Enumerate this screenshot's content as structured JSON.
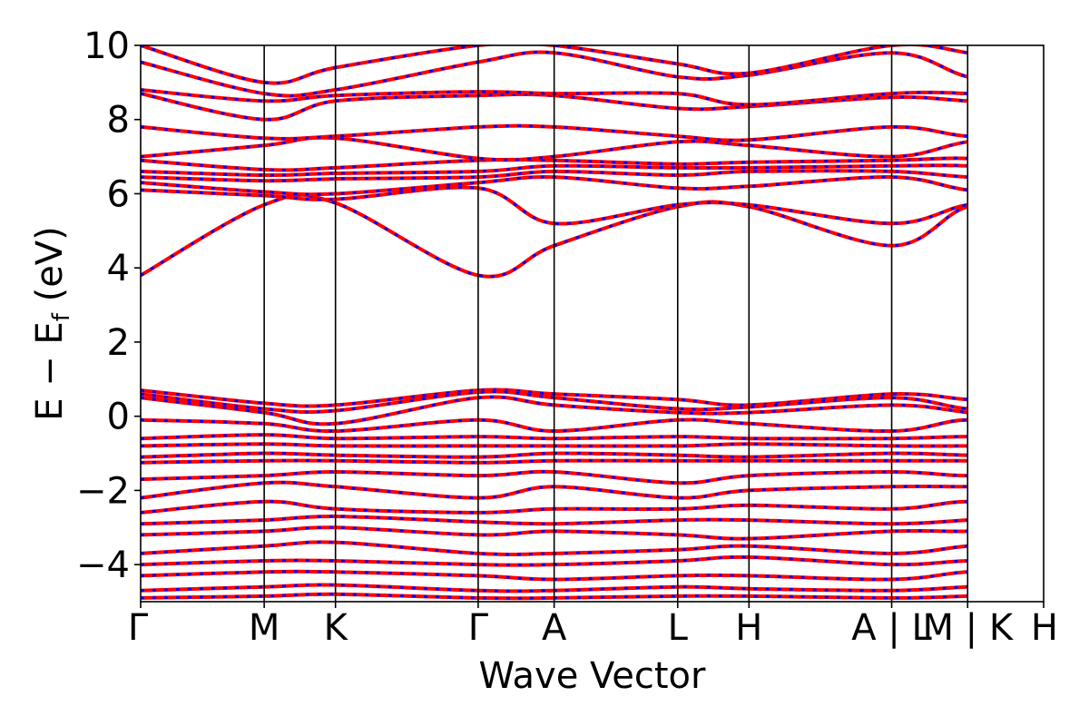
{
  "chart_data": {
    "type": "line",
    "title": "",
    "xlabel": "Wave Vector",
    "ylabel_parts": {
      "main": "E − E",
      "sub": "f",
      "unit": " (eV)"
    },
    "ylim": [
      -5,
      10
    ],
    "y_ticks": [
      10,
      8,
      6,
      4,
      2,
      0,
      -2,
      -4
    ],
    "y_tick_labels": [
      "10",
      "8",
      "6",
      "4",
      "2",
      "0",
      "−2",
      "−4"
    ],
    "x_ticks": [
      {
        "label": "Γ",
        "x": 0.0
      },
      {
        "label": "M",
        "x": 1.0
      },
      {
        "label": "K",
        "x": 1.577
      },
      {
        "label": "Γ",
        "x": 2.732
      },
      {
        "label": "A",
        "x": 3.347
      },
      {
        "label": "L",
        "x": 4.347
      },
      {
        "label": "H",
        "x": 4.924
      },
      {
        "label": "A | L",
        "x": 6.079
      },
      {
        "label": "M | K",
        "x": 6.694
      },
      {
        "label": "H",
        "x": 7.309
      }
    ],
    "xlim": [
      0,
      7.309
    ],
    "grid": false,
    "legend": "none",
    "series_style": [
      {
        "name": "",
        "color": "#ff0000",
        "dash": "solid"
      },
      {
        "name": "",
        "color": "#0000ff",
        "dash": "dashed"
      }
    ],
    "conduction_bands": [
      [
        3.8,
        5.7,
        5.75,
        3.8,
        4.6,
        5.65,
        5.65,
        4.6,
        5.65,
        5.65,
        5.7
      ],
      [
        6.1,
        5.95,
        5.85,
        6.15,
        5.2,
        5.7,
        5.7,
        5.2,
        5.7,
        5.85,
        5.9
      ],
      [
        6.3,
        6.05,
        6.0,
        6.3,
        6.45,
        6.15,
        6.2,
        6.45,
        6.1,
        6.0,
        6.25
      ],
      [
        6.45,
        6.35,
        6.4,
        6.45,
        6.6,
        6.5,
        6.6,
        6.6,
        6.45,
        6.4,
        6.5
      ],
      [
        6.6,
        6.5,
        6.55,
        6.6,
        6.75,
        6.7,
        6.7,
        6.75,
        6.75,
        6.55,
        6.65
      ],
      [
        6.9,
        6.65,
        6.7,
        6.9,
        6.9,
        6.8,
        6.85,
        6.9,
        6.95,
        6.7,
        6.8
      ],
      [
        7.0,
        7.3,
        7.5,
        6.95,
        7.0,
        7.4,
        7.3,
        7.0,
        7.4,
        7.5,
        7.4
      ],
      [
        7.8,
        7.5,
        7.55,
        7.8,
        7.8,
        7.55,
        7.45,
        7.8,
        7.55,
        7.55,
        7.5
      ],
      [
        8.7,
        8.0,
        8.5,
        8.65,
        8.65,
        8.3,
        8.35,
        8.6,
        8.5,
        8.4,
        8.45
      ],
      [
        8.8,
        8.5,
        8.65,
        8.75,
        8.7,
        8.7,
        8.4,
        8.7,
        8.7,
        8.5,
        8.5
      ],
      [
        9.55,
        8.7,
        8.8,
        9.55,
        9.8,
        9.15,
        9.2,
        9.8,
        9.15,
        8.8,
        9.2
      ],
      [
        10.0,
        9.0,
        9.4,
        10.0,
        10.0,
        9.5,
        9.25,
        10.0,
        9.8,
        9.4,
        9.5
      ]
    ],
    "valence_bands": [
      [
        0.7,
        0.35,
        0.3,
        0.7,
        0.6,
        0.45,
        0.3,
        0.6,
        0.45,
        0.3,
        0.35
      ],
      [
        0.6,
        0.2,
        0.15,
        0.65,
        0.5,
        0.2,
        0.25,
        0.5,
        0.2,
        0.15,
        0.2
      ],
      [
        0.5,
        0.1,
        -0.2,
        0.5,
        0.3,
        0.1,
        0.1,
        0.3,
        0.1,
        -0.2,
        -0.15
      ],
      [
        -0.1,
        -0.2,
        -0.4,
        -0.1,
        -0.4,
        -0.1,
        -0.2,
        -0.4,
        -0.1,
        -0.4,
        -0.3
      ],
      [
        -0.6,
        -0.5,
        -0.6,
        -0.55,
        -0.6,
        -0.55,
        -0.6,
        -0.6,
        -0.55,
        -0.6,
        -0.6
      ],
      [
        -0.8,
        -0.75,
        -0.8,
        -0.8,
        -0.8,
        -0.8,
        -0.75,
        -0.8,
        -0.8,
        -0.8,
        -0.8
      ],
      [
        -1.1,
        -1.0,
        -1.05,
        -1.1,
        -1.0,
        -1.05,
        -1.1,
        -1.0,
        -1.05,
        -1.05,
        -1.05
      ],
      [
        -1.25,
        -1.2,
        -1.2,
        -1.25,
        -1.2,
        -1.2,
        -1.2,
        -1.2,
        -1.2,
        -1.2,
        -1.2
      ],
      [
        -1.7,
        -1.6,
        -1.5,
        -1.6,
        -1.5,
        -1.8,
        -1.6,
        -1.5,
        -1.6,
        -1.5,
        -1.5
      ],
      [
        -2.2,
        -1.8,
        -1.9,
        -2.2,
        -1.9,
        -2.2,
        -2.0,
        -1.9,
        -1.9,
        -1.9,
        -1.9
      ],
      [
        -2.6,
        -2.3,
        -2.5,
        -2.6,
        -2.5,
        -2.5,
        -2.4,
        -2.5,
        -2.3,
        -2.5,
        -2.4
      ],
      [
        -2.9,
        -2.8,
        -2.7,
        -2.85,
        -2.9,
        -2.8,
        -2.8,
        -2.9,
        -2.8,
        -2.7,
        -2.7
      ],
      [
        -3.2,
        -3.1,
        -3.0,
        -3.2,
        -3.1,
        -3.2,
        -3.3,
        -3.1,
        -3.1,
        -3.0,
        -3.1
      ],
      [
        -3.7,
        -3.5,
        -3.4,
        -3.7,
        -3.7,
        -3.6,
        -3.5,
        -3.7,
        -3.5,
        -3.4,
        -3.4
      ],
      [
        -4.0,
        -3.9,
        -3.9,
        -4.0,
        -4.0,
        -3.9,
        -3.8,
        -4.0,
        -3.9,
        -3.9,
        -3.8
      ],
      [
        -4.3,
        -4.2,
        -4.2,
        -4.3,
        -4.4,
        -4.3,
        -4.3,
        -4.4,
        -4.2,
        -4.2,
        -4.2
      ],
      [
        -4.7,
        -4.6,
        -4.55,
        -4.7,
        -4.7,
        -4.6,
        -4.65,
        -4.7,
        -4.6,
        -4.55,
        -4.6
      ],
      [
        -4.9,
        -4.85,
        -4.8,
        -4.9,
        -4.9,
        -4.85,
        -4.85,
        -4.9,
        -4.85,
        -4.8,
        -4.85
      ]
    ]
  }
}
